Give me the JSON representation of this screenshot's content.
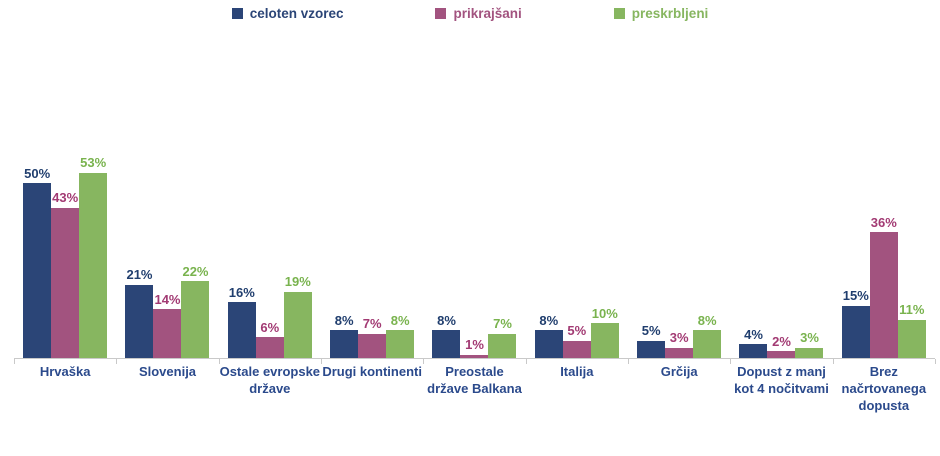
{
  "legend": {
    "items": [
      {
        "label": "celoten vzorec",
        "color": "#2b4577"
      },
      {
        "label": "prikrajšani",
        "color": "#a2537f"
      },
      {
        "label": "preskrbljeni",
        "color": "#87b660"
      }
    ]
  },
  "chart_data": {
    "type": "bar",
    "title": "",
    "xlabel": "",
    "ylabel": "",
    "categories": [
      "Hrvaška",
      "Slovenija",
      "Ostale evropske države",
      "Drugi kontinenti",
      "Preostale države Balkana",
      "Italija",
      "Grčija",
      "Dopust z manj kot 4 nočitvami",
      "Brez načrtovanega dopusta"
    ],
    "series": [
      {
        "name": "celoten vzorec",
        "color": "#2b4577",
        "label_color": "#203e6e",
        "values": [
          50,
          21,
          16,
          8,
          8,
          8,
          5,
          4,
          15
        ]
      },
      {
        "name": "prikrajšani",
        "color": "#a2537f",
        "label_color": "#a23a73",
        "values": [
          43,
          14,
          6,
          7,
          1,
          5,
          3,
          2,
          36
        ]
      },
      {
        "name": "preskrbljeni",
        "color": "#87b660",
        "label_color": "#79b34e",
        "values": [
          53,
          22,
          19,
          8,
          7,
          10,
          8,
          3,
          11
        ]
      }
    ],
    "value_suffix": "%",
    "ylim": [
      0,
      60
    ],
    "grid": false,
    "legend_position": "top",
    "axis_color": "#c9c9c9",
    "category_label_color": "#2b4a8c"
  }
}
